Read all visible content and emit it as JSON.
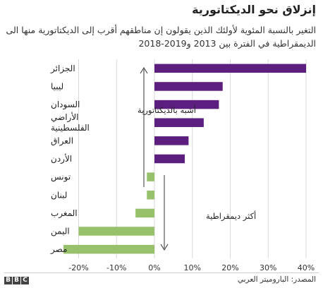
{
  "chart_data": {
    "type": "bar",
    "orientation": "horizontal",
    "title": "إنزلاق نحو الديكتاتورية",
    "subtitle": "التغير بالنسبة المئوية لأولئك الذين يقولون إن مناطقهم أقرب إلى الديكتاتورية منها الى الديمقراطية في الفترة بين 2013 و2019-2018",
    "categories": [
      "الجزائر",
      "ليبيا",
      "السودان",
      "الأراضي الفلسطينية",
      "العراق",
      "الأردن",
      "تونس",
      "لبنان",
      "المغرب",
      "اليمن",
      "مصر"
    ],
    "values": [
      40,
      18,
      17,
      13,
      9,
      8,
      -2,
      -2,
      -5,
      -20,
      -24
    ],
    "xlim": [
      -25,
      41
    ],
    "ticks": [
      -20,
      -10,
      0,
      10,
      20,
      30,
      40
    ],
    "tick_labels": [
      "-20%",
      "-10%",
      "0%",
      "10%",
      "20%",
      "30%",
      "40%"
    ],
    "grid": true,
    "colors": {
      "positive": "#5c1f80",
      "negative": "#97c16a",
      "grid": "#d9d9d9",
      "axis": "#333333"
    },
    "annotations": {
      "up": "أشبه بالديكتاتورية",
      "down": "أكثر ديمقراطية"
    }
  },
  "source": "المصدر: الباروميتر العربي",
  "logo": [
    "B",
    "B",
    "C"
  ]
}
